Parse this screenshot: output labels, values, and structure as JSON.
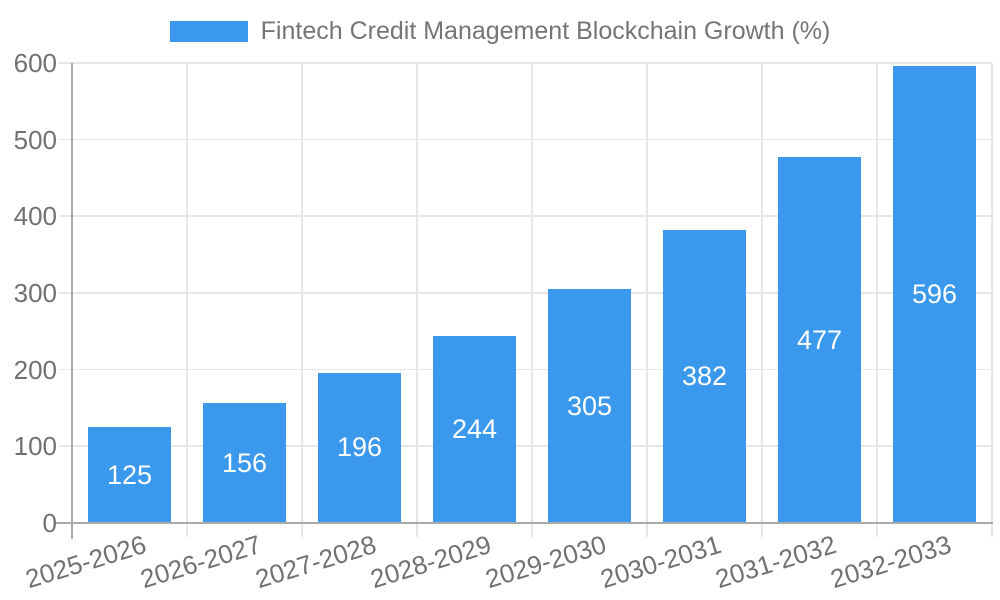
{
  "chart_data": {
    "type": "bar",
    "title": "Fintech Credit Management Blockchain Growth (%)",
    "legend": {
      "label": "Fintech Credit Management Blockchain Growth (%)",
      "position": "top-center"
    },
    "categories": [
      "2025-2026",
      "2026-2027",
      "2027-2028",
      "2028-2029",
      "2029-2030",
      "2030-2031",
      "2031-2032",
      "2032-2033"
    ],
    "values": [
      125,
      156,
      196,
      244,
      305,
      382,
      477,
      596
    ],
    "xlabel": "",
    "ylabel": "",
    "ylim": [
      0,
      600
    ],
    "yticks": [
      0,
      100,
      200,
      300,
      400,
      500,
      600
    ],
    "grid": "on",
    "bar_labels": "inside-center",
    "colors": {
      "bar": "#3A99EC",
      "grid": "#e6e6e6",
      "axis": "#aaaaaa",
      "tick_text": "#717171",
      "legend_text": "#757575",
      "bar_label_text": "#ffffff",
      "background": "#ffffff"
    }
  }
}
